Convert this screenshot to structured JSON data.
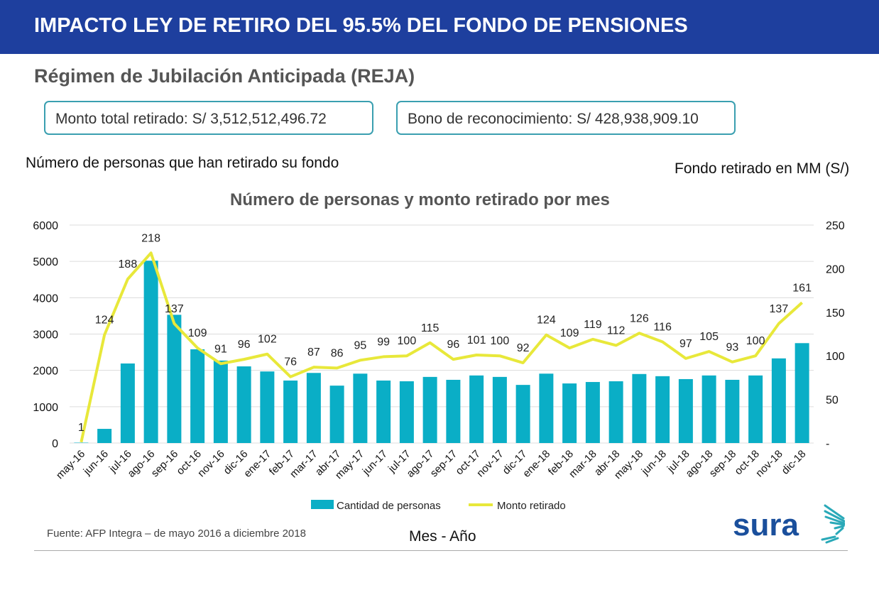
{
  "header": {
    "title": "IMPACTO LEY DE RETIRO DEL 95.5% DEL FONDO DE PENSIONES"
  },
  "subtitle": "Régimen de Jubilación Anticipada (REJA)",
  "boxes": {
    "total": "Monto total retirado: S/ 3,512,512,496.72",
    "bono": "Bono de reconocimiento: S/ 428,938,909.10"
  },
  "footer": {
    "source": "Fuente: AFP Integra – de mayo 2016 a diciembre 2018",
    "logo": "sura"
  },
  "colors": {
    "header": "#1e3f9e",
    "bars": "#0aaec6",
    "line": "#e8e83a"
  },
  "chart_data": {
    "type": "bar+line",
    "title": "Número de personas y monto retirado por mes",
    "ylabel": "Número de personas que han retirado su fondo",
    "y2label": "Fondo retirado en MM (S/)",
    "xlabel": "Mes - Año",
    "ylim": [
      0,
      6000
    ],
    "yticks": [
      "0",
      "1000",
      "2000",
      "3000",
      "4000",
      "5000",
      "6000"
    ],
    "y2lim": [
      0,
      250
    ],
    "y2ticks": [
      "-",
      "50",
      "100",
      "150",
      "200",
      "250"
    ],
    "grid": true,
    "legend": "bottom",
    "categories": [
      "may-16",
      "jun-16",
      "jul-16",
      "ago-16",
      "sep-16",
      "oct-16",
      "nov-16",
      "dic-16",
      "ene-17",
      "feb-17",
      "mar-17",
      "abr-17",
      "may-17",
      "jun-17",
      "jul-17",
      "ago-17",
      "sep-17",
      "oct-17",
      "nov-17",
      "dic-17",
      "ene-18",
      "feb-18",
      "mar-18",
      "abr-18",
      "may-18",
      "jun-18",
      "jul-18",
      "ago-18",
      "sep-18",
      "oct-18",
      "nov-18",
      "dic-18"
    ],
    "series": [
      {
        "name": "Cantidad de personas",
        "type": "bar",
        "axis": "left",
        "values": [
          10,
          390,
          2190,
          5020,
          3530,
          2580,
          2270,
          2110,
          1970,
          1720,
          1930,
          1580,
          1910,
          1720,
          1700,
          1820,
          1740,
          1860,
          1820,
          1600,
          1910,
          1640,
          1680,
          1700,
          1900,
          1840,
          1760,
          1860,
          1740,
          1860,
          2330,
          2750
        ]
      },
      {
        "name": "Monto retirado",
        "type": "line",
        "axis": "right",
        "values": [
          1,
          124,
          188,
          218,
          137,
          109,
          91,
          96,
          102,
          76,
          87,
          86,
          95,
          99,
          100,
          115,
          96,
          101,
          100,
          92,
          124,
          109,
          119,
          112,
          126,
          116,
          97,
          105,
          93,
          100,
          137,
          161
        ]
      }
    ]
  }
}
